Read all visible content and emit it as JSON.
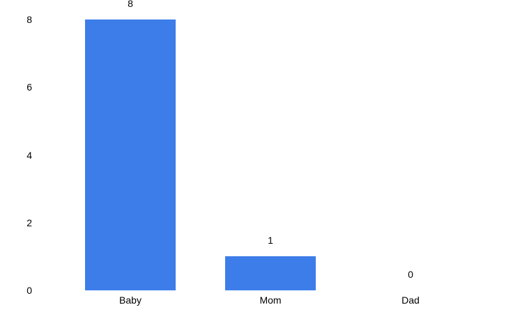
{
  "chart_data": {
    "type": "bar",
    "title": "",
    "xlabel": "",
    "ylabel": "",
    "categories": [
      "Baby",
      "Mom",
      "Dad"
    ],
    "values": [
      8,
      1,
      0
    ],
    "data_labels": [
      "8",
      "1",
      "0"
    ],
    "y_ticks": [
      "0",
      "2",
      "4",
      "6",
      "8"
    ],
    "ylim": [
      0,
      8
    ],
    "grid": "off",
    "legend": "none",
    "colors": {
      "bar": "#3d7de9",
      "text": "#000000",
      "background": "#ffffff"
    }
  }
}
